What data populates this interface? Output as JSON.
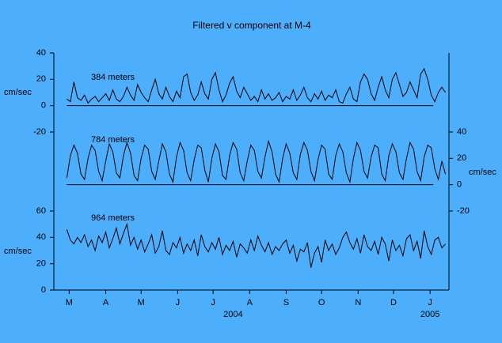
{
  "chart_data": {
    "type": "line",
    "title": "Filtered v component at M-4",
    "xlim": [
      -13,
      322
    ],
    "xticks": [
      {
        "value": 0,
        "label": "M"
      },
      {
        "value": 31,
        "label": "A"
      },
      {
        "value": 61,
        "label": "M"
      },
      {
        "value": 92,
        "label": "J"
      },
      {
        "value": 122,
        "label": "J"
      },
      {
        "value": 153,
        "label": "A"
      },
      {
        "value": 184,
        "label": "S"
      },
      {
        "value": 214,
        "label": "O"
      },
      {
        "value": 245,
        "label": "N"
      },
      {
        "value": 275,
        "label": "D"
      },
      {
        "value": 306,
        "label": "J"
      }
    ],
    "year_labels": [
      {
        "value": 139,
        "label": "2004"
      },
      {
        "value": 306,
        "label": "2005"
      }
    ],
    "ylabel": "cm/sec",
    "ylim": [
      -140,
      40
    ],
    "yticks": [
      40,
      20,
      0,
      -20
    ],
    "y2label": "cm/sec",
    "y2lim": [
      -80,
      100
    ],
    "y2ticks": [
      40,
      20,
      0,
      -20
    ],
    "y3label": "cm/sec",
    "y3lim": [
      0,
      180
    ],
    "y3ticks": [
      60,
      40,
      20,
      0
    ],
    "x": [
      -2,
      1,
      4,
      7,
      10,
      13,
      16,
      19,
      22,
      25,
      28,
      31,
      34,
      37,
      40,
      43,
      46,
      49,
      52,
      55,
      58,
      61,
      64,
      67,
      70,
      73,
      76,
      79,
      82,
      85,
      88,
      91,
      94,
      97,
      100,
      103,
      106,
      109,
      112,
      115,
      118,
      121,
      124,
      127,
      130,
      133,
      136,
      139,
      142,
      145,
      148,
      151,
      154,
      157,
      160,
      163,
      166,
      169,
      172,
      175,
      178,
      181,
      184,
      187,
      190,
      193,
      196,
      199,
      202,
      205,
      208,
      211,
      214,
      217,
      220,
      223,
      226,
      229,
      232,
      235,
      238,
      241,
      244,
      247,
      250,
      253,
      256,
      259,
      262,
      265,
      268,
      271,
      274,
      277,
      280,
      283,
      286,
      289,
      292,
      295,
      298,
      301,
      304,
      307,
      310,
      313,
      316,
      319
    ],
    "series": [
      {
        "name": "384 meters",
        "color": "#000000",
        "axis": "y",
        "values": [
          5,
          3,
          18,
          6,
          4,
          8,
          2,
          5,
          7,
          3,
          6,
          9,
          4,
          12,
          5,
          3,
          7,
          14,
          8,
          4,
          16,
          10,
          6,
          3,
          12,
          20,
          9,
          5,
          14,
          7,
          3,
          11,
          6,
          22,
          24,
          10,
          4,
          8,
          18,
          9,
          5,
          20,
          25,
          12,
          3,
          8,
          17,
          22,
          11,
          6,
          14,
          9,
          4,
          7,
          3,
          12,
          5,
          9,
          4,
          6,
          10,
          3,
          7,
          5,
          12,
          4,
          8,
          14,
          6,
          3,
          9,
          5,
          11,
          4,
          8,
          6,
          12,
          3,
          2,
          9,
          14,
          5,
          3,
          18,
          24,
          20,
          9,
          4,
          14,
          22,
          12,
          6,
          20,
          25,
          16,
          7,
          10,
          18,
          12,
          6,
          24,
          28,
          20,
          8,
          3,
          10,
          14,
          10
        ]
      },
      {
        "name": "784 meters",
        "color": "#000000",
        "axis": "y2",
        "values": [
          5,
          22,
          30,
          24,
          8,
          4,
          20,
          30,
          26,
          10,
          3,
          18,
          31,
          25,
          9,
          5,
          22,
          32,
          24,
          7,
          3,
          20,
          30,
          27,
          10,
          4,
          18,
          31,
          25,
          8,
          2,
          21,
          32,
          26,
          9,
          3,
          19,
          30,
          28,
          11,
          2,
          20,
          31,
          25,
          7,
          4,
          22,
          32,
          27,
          9,
          3,
          18,
          30,
          26,
          10,
          5,
          21,
          33,
          25,
          8,
          2,
          20,
          31,
          24,
          9,
          4,
          23,
          32,
          26,
          10,
          3,
          19,
          30,
          27,
          8,
          4,
          22,
          31,
          25,
          9,
          2,
          20,
          32,
          26,
          10,
          5,
          21,
          30,
          28,
          8,
          3,
          22,
          31,
          25,
          9,
          4,
          20,
          32,
          27,
          10,
          3,
          21,
          30,
          28,
          12,
          4,
          18,
          8
        ]
      },
      {
        "name": "964 meters",
        "color": "#000000",
        "axis": "y3",
        "values": [
          46,
          38,
          35,
          40,
          36,
          42,
          33,
          38,
          30,
          41,
          36,
          44,
          32,
          39,
          47,
          35,
          43,
          50,
          34,
          40,
          31,
          38,
          29,
          35,
          42,
          28,
          33,
          45,
          30,
          27,
          36,
          32,
          40,
          28,
          35,
          30,
          38,
          26,
          42,
          33,
          29,
          36,
          31,
          40,
          27,
          34,
          30,
          37,
          25,
          35,
          32,
          28,
          38,
          30,
          41,
          34,
          29,
          36,
          27,
          33,
          30,
          35,
          38,
          28,
          34,
          22,
          31,
          29,
          36,
          17,
          28,
          33,
          21,
          38,
          30,
          35,
          27,
          32,
          40,
          44,
          36,
          31,
          39,
          28,
          42,
          33,
          30,
          37,
          27,
          40,
          35,
          22,
          38,
          30,
          34,
          26,
          39,
          42,
          30,
          37,
          24,
          45,
          33,
          27,
          38,
          40,
          32,
          35
        ]
      }
    ],
    "zero_lines": true
  }
}
